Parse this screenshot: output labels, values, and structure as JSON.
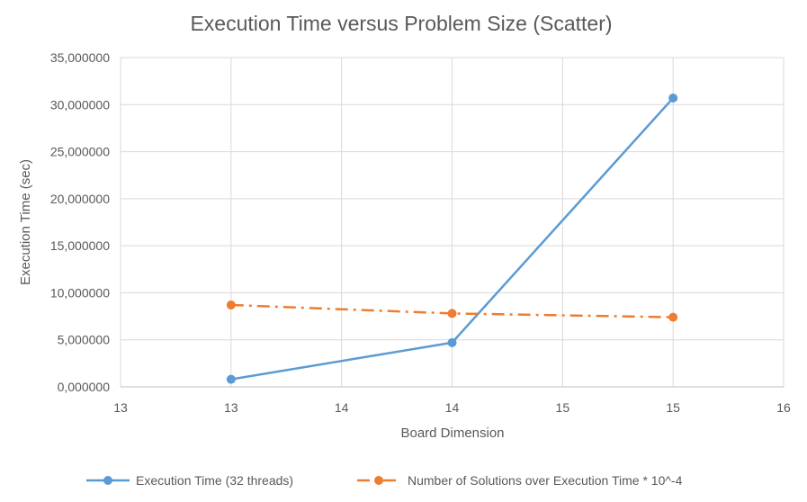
{
  "chart_data": {
    "type": "scatter",
    "title": "Execution Time versus Problem Size (Scatter)",
    "xlabel": "Board Dimension",
    "ylabel": "Execution Time (sec)",
    "xlim": [
      12.5,
      15.5
    ],
    "ylim": [
      0,
      35
    ],
    "x_ticks": [
      12.5,
      13,
      13.5,
      14,
      14.5,
      15,
      15.5
    ],
    "x_tick_labels": [
      "13",
      "13",
      "14",
      "14",
      "15",
      "15",
      "16"
    ],
    "y_ticks": [
      0,
      5,
      10,
      15,
      20,
      25,
      30,
      35
    ],
    "y_tick_labels": [
      "0,000000",
      "5,000000",
      "10,000000",
      "15,000000",
      "20,000000",
      "25,000000",
      "30,000000",
      "35,000000"
    ],
    "grid": true,
    "legend_position": "bottom",
    "series": [
      {
        "name": "Execution Time (32 threads)",
        "color": "#5B9BD5",
        "line_style": "solid",
        "marker": "circle",
        "x": [
          13,
          14,
          15
        ],
        "y": [
          0.8,
          4.7,
          30.7
        ]
      },
      {
        "name": "Number of Solutions over Execution Time * 10^-4",
        "color": "#ED7D31",
        "line_style": "dash-dot",
        "marker": "circle",
        "x": [
          13,
          14,
          15
        ],
        "y": [
          8.7,
          7.8,
          7.4
        ]
      }
    ]
  }
}
